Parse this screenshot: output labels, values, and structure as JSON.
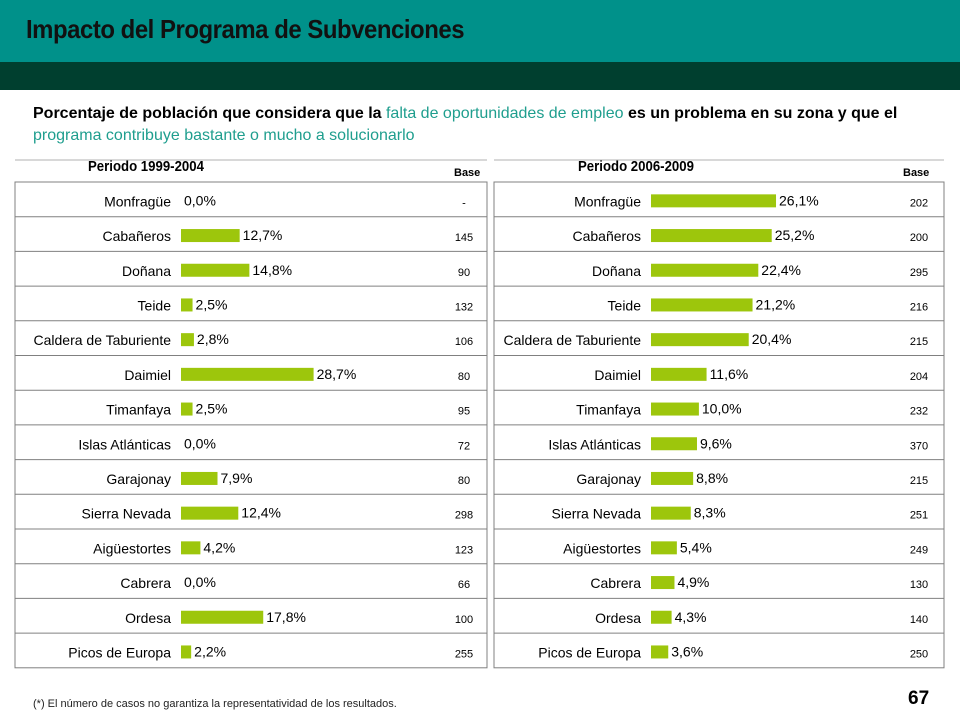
{
  "header": {
    "title": "Impacto del Programa de Subvenciones"
  },
  "subtitle": {
    "part1": "Porcentaje de población que considera que la ",
    "highlight1": "falta de oportunidades de empleo",
    "part2": " es un problema en su zona y que el ",
    "highlight2": "programa contribuye bastante o mucho a solucionarlo"
  },
  "colors": {
    "bar": "#9dc60c",
    "header": "#00918a",
    "band": "#003f2f",
    "highlight": "#1f9e8e"
  },
  "base_label": "Base",
  "chart_data": [
    {
      "type": "bar",
      "orientation": "horizontal",
      "title": "Periodo 1999-2004",
      "categories": [
        "Monfragüe",
        "Cabañeros",
        "Doñana",
        "Teide",
        "Caldera de Taburiente",
        "Daimiel",
        "Timanfaya",
        "Islas Atlánticas",
        "Garajonay",
        "Sierra Nevada",
        "Aigüestortes",
        "Cabrera",
        "Ordesa",
        "Picos de Europa"
      ],
      "values": [
        0.0,
        12.7,
        14.8,
        2.5,
        2.8,
        28.7,
        2.5,
        0.0,
        7.9,
        12.4,
        4.2,
        0.0,
        17.8,
        2.2
      ],
      "labels": [
        "0,0%",
        "12,7%",
        "14,8%",
        "2,5%",
        "2,8%",
        "28,7%",
        "2,5%",
        "0,0%",
        "7,9%",
        "12,4%",
        "4,2%",
        "0,0%",
        "17,8%",
        "2,2%"
      ],
      "base": [
        "-",
        "145",
        "90",
        "132",
        "106",
        "80",
        "95",
        "72",
        "80",
        "298",
        "123",
        "66",
        "100",
        "255"
      ]
    },
    {
      "type": "bar",
      "orientation": "horizontal",
      "title": "Periodo 2006-2009",
      "categories": [
        "Monfragüe",
        "Cabañeros",
        "Doñana",
        "Teide",
        "Caldera de Taburiente",
        "Daimiel",
        "Timanfaya",
        "Islas Atlánticas",
        "Garajonay",
        "Sierra Nevada",
        "Aigüestortes",
        "Cabrera",
        "Ordesa",
        "Picos de Europa"
      ],
      "values": [
        26.1,
        25.2,
        22.4,
        21.2,
        20.4,
        11.6,
        10.0,
        9.6,
        8.8,
        8.3,
        5.4,
        4.9,
        4.3,
        3.6
      ],
      "labels": [
        "26,1%",
        "25,2%",
        "22,4%",
        "21,2%",
        "20,4%",
        "11,6%",
        "10,0%",
        "9,6%",
        "8,8%",
        "8,3%",
        "5,4%",
        "4,9%",
        "4,3%",
        "3,6%"
      ],
      "base": [
        "202",
        "200",
        "295",
        "216",
        "215",
        "204",
        "232",
        "370",
        "215",
        "251",
        "249",
        "130",
        "140",
        "250"
      ]
    }
  ],
  "footnote": "(*) El número de casos no garantiza la representatividad de los resultados.",
  "page_number": "67"
}
